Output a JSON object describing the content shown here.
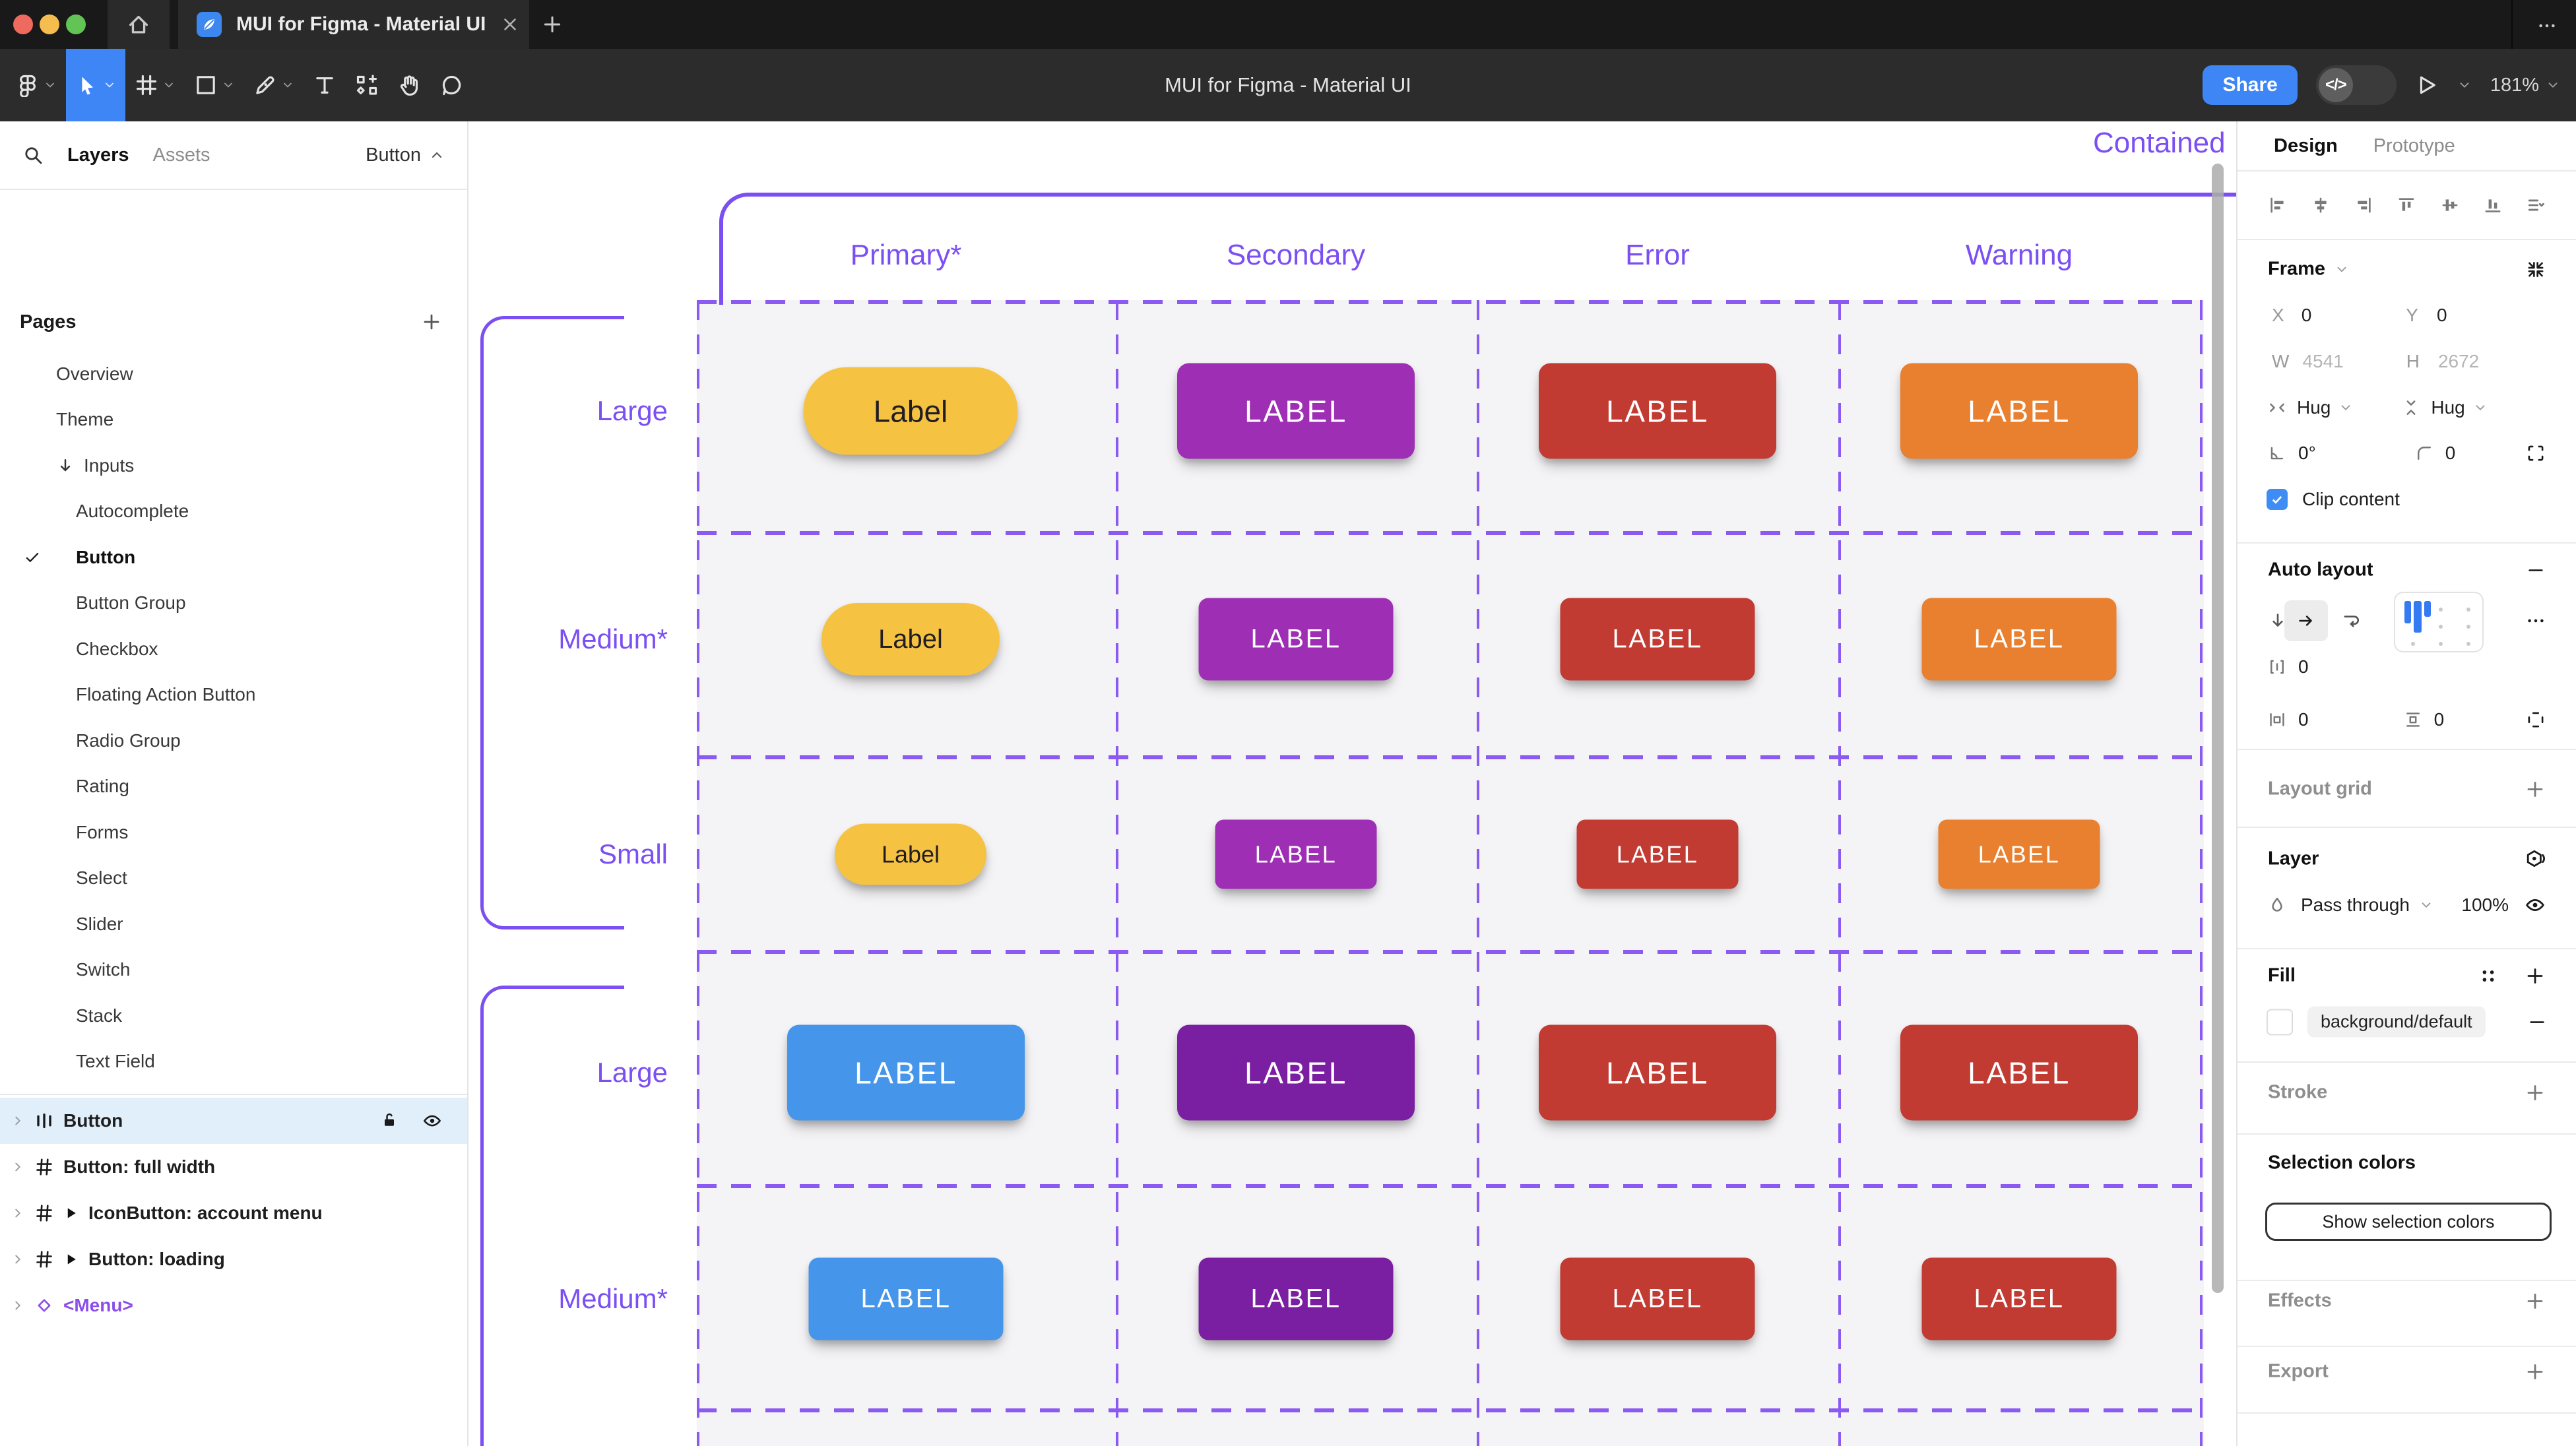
{
  "titlebar": {
    "traffic_lights": [
      "#ee6a5f",
      "#f5bd4f",
      "#61c454"
    ],
    "tab": {
      "title": "MUI for Figma - Material UI",
      "favicon": "mui-leaf-icon",
      "close_icon": "close-icon"
    },
    "new_tab_icon": "plus-icon",
    "home_icon": "home-icon",
    "overflow_icon": "more-icon"
  },
  "toolbar": {
    "document_title": "MUI for Figma - Material UI",
    "tools": [
      {
        "name": "main-menu",
        "icon": "figma-logo-icon",
        "chevron": true,
        "active": false
      },
      {
        "name": "move-tool",
        "icon": "move-tool-icon",
        "chevron": true,
        "active": true
      },
      {
        "name": "frame-tool",
        "icon": "frame-tool-icon",
        "chevron": true,
        "active": false
      },
      {
        "name": "shape-tool",
        "icon": "shape-tool-icon",
        "chevron": true,
        "active": false
      },
      {
        "name": "pen-tool",
        "icon": "pen-tool-icon",
        "chevron": true,
        "active": false
      },
      {
        "name": "text-tool",
        "icon": "text-tool-icon",
        "chevron": false,
        "active": false
      },
      {
        "name": "actions-tool",
        "icon": "actions-icon",
        "chevron": false,
        "active": false
      },
      {
        "name": "hand-tool",
        "icon": "hand-tool-icon",
        "chevron": false,
        "active": false
      },
      {
        "name": "comment-tool",
        "icon": "comment-icon",
        "chevron": false,
        "active": false
      }
    ],
    "share_label": "Share",
    "dev_mode_icon": "code-icon",
    "present_icon": "play-outline-icon",
    "zoom_value": "181%"
  },
  "sidebar": {
    "search_icon": "search-icon",
    "tabs": [
      {
        "label": "Layers",
        "active": true
      },
      {
        "label": "Assets",
        "active": false
      }
    ],
    "component_selector": {
      "label": "Button",
      "chevron_icon": "chevron-up-icon"
    },
    "pages_header": "Pages",
    "pages_add_icon": "plus-icon",
    "pages": [
      {
        "label": "Overview",
        "indent": 0
      },
      {
        "label": "Theme",
        "indent": 0
      },
      {
        "label": "Inputs",
        "indent": 0,
        "prefix_icon": "down-arrow-icon"
      },
      {
        "label": "Autocomplete",
        "indent": 1
      },
      {
        "label": "Button",
        "indent": 1,
        "checked": true,
        "bold": true
      },
      {
        "label": "Button Group",
        "indent": 1
      },
      {
        "label": "Checkbox",
        "indent": 1
      },
      {
        "label": "Floating Action Button",
        "indent": 1
      },
      {
        "label": "Radio Group",
        "indent": 1
      },
      {
        "label": "Rating",
        "indent": 1
      },
      {
        "label": "Forms",
        "indent": 1
      },
      {
        "label": "Select",
        "indent": 1
      },
      {
        "label": "Slider",
        "indent": 1
      },
      {
        "label": "Switch",
        "indent": 1
      },
      {
        "label": "Stack",
        "indent": 1
      },
      {
        "label": "Text Field",
        "indent": 1
      }
    ],
    "layers": [
      {
        "label": "Button",
        "icon": "auto-layout-icon",
        "selected": true,
        "lock_icon": "lock-open-icon",
        "eye_icon": "eye-icon"
      },
      {
        "label": "Button: full width",
        "icon": "frame-hash-icon"
      },
      {
        "label": "IconButton: account menu",
        "icon": "frame-hash-icon",
        "play": true
      },
      {
        "label": "Button: loading",
        "icon": "frame-hash-icon",
        "play": true
      },
      {
        "label": "<Menu>",
        "icon": "component-diamond-icon",
        "purple": true
      }
    ]
  },
  "canvas": {
    "frame_title": "Contained",
    "annotation_color": "#7b4ff2",
    "dashed_color": "#8a5af2",
    "cell_bg": "#f4f3f5",
    "columns": [
      "Primary*",
      "Secondary",
      "Error",
      "Warning"
    ],
    "rows": [
      {
        "label": "Large",
        "size": "large",
        "buttons": [
          {
            "text": "Label",
            "bg": "#f5c242",
            "fg": "#211d22",
            "pill": true
          },
          {
            "text": "LABEL",
            "bg": "#9e2fb5",
            "fg": "#ffffff"
          },
          {
            "text": "LABEL",
            "bg": "#c23b32",
            "fg": "#ffffff"
          },
          {
            "text": "LABEL",
            "bg": "#e8802f",
            "fg": "#ffffff"
          }
        ]
      },
      {
        "label": "Medium*",
        "size": "medium",
        "buttons": [
          {
            "text": "Label",
            "bg": "#f5c242",
            "fg": "#211d22",
            "pill": true
          },
          {
            "text": "LABEL",
            "bg": "#9e2fb5",
            "fg": "#ffffff"
          },
          {
            "text": "LABEL",
            "bg": "#c23b32",
            "fg": "#ffffff"
          },
          {
            "text": "LABEL",
            "bg": "#e8802f",
            "fg": "#ffffff"
          }
        ]
      },
      {
        "label": "Small",
        "size": "small",
        "buttons": [
          {
            "text": "Label",
            "bg": "#f5c242",
            "fg": "#211d22",
            "pill": true
          },
          {
            "text": "LABEL",
            "bg": "#9e2fb5",
            "fg": "#ffffff"
          },
          {
            "text": "LABEL",
            "bg": "#c23b32",
            "fg": "#ffffff"
          },
          {
            "text": "LABEL",
            "bg": "#e8802f",
            "fg": "#ffffff"
          }
        ]
      },
      {
        "label": "Large",
        "size": "large",
        "buttons": [
          {
            "text": "LABEL",
            "bg": "#4596ea",
            "fg": "#ffffff"
          },
          {
            "text": "LABEL",
            "bg": "#7b1fa2",
            "fg": "#ffffff"
          },
          {
            "text": "LABEL",
            "bg": "#c23b32",
            "fg": "#ffffff"
          },
          {
            "text": "LABEL",
            "bg": "#c23b32",
            "fg": "#ffffff"
          }
        ]
      },
      {
        "label": "Medium*",
        "size": "medium",
        "buttons": [
          {
            "text": "LABEL",
            "bg": "#4596ea",
            "fg": "#ffffff"
          },
          {
            "text": "LABEL",
            "bg": "#7b1fa2",
            "fg": "#ffffff"
          },
          {
            "text": "LABEL",
            "bg": "#c23b32",
            "fg": "#ffffff"
          },
          {
            "text": "LABEL",
            "bg": "#c23b32",
            "fg": "#ffffff"
          }
        ]
      }
    ]
  },
  "inspector": {
    "tabs": [
      {
        "label": "Design",
        "active": true
      },
      {
        "label": "Prototype",
        "active": false
      }
    ],
    "alignment_icons": [
      "align-left-icon",
      "align-h-center-icon",
      "align-right-icon",
      "align-top-icon",
      "align-v-center-icon",
      "align-bottom-icon",
      "distribute-icon"
    ],
    "frame": {
      "title": "Frame",
      "collapse_icon": "shrink-icon",
      "x_label": "X",
      "x_value": "0",
      "y_label": "Y",
      "y_value": "0",
      "w_label": "W",
      "w_value": "4541",
      "h_label": "H",
      "h_value": "2672",
      "hug_h": "Hug",
      "hug_v": "Hug",
      "rotation": "0°",
      "corner_radius": "0",
      "clip_label": "Clip content",
      "clip_checked": true
    },
    "auto_layout": {
      "title": "Auto layout",
      "remove_icon": "minus-icon",
      "gap": "0",
      "pad_h": "0",
      "pad_v": "0",
      "more_icon": "more-icon"
    },
    "layout_grid": {
      "title": "Layout grid",
      "add_icon": "plus-icon"
    },
    "layer": {
      "title": "Layer",
      "blend_icon": "blend-icon",
      "blend_mode": "Pass through",
      "opacity": "100%",
      "eye_icon": "eye-icon"
    },
    "fill": {
      "title": "Fill",
      "styles_icon": "styles-icon",
      "add_icon": "plus-icon",
      "token": "background/default",
      "swatch": "#ffffff",
      "remove_icon": "minus-icon"
    },
    "stroke": {
      "title": "Stroke",
      "add_icon": "plus-icon"
    },
    "selection_colors": {
      "title": "Selection colors",
      "button_label": "Show selection colors"
    },
    "effects": {
      "title": "Effects",
      "add_icon": "plus-icon"
    },
    "export": {
      "title": "Export",
      "add_icon": "plus-icon"
    }
  }
}
